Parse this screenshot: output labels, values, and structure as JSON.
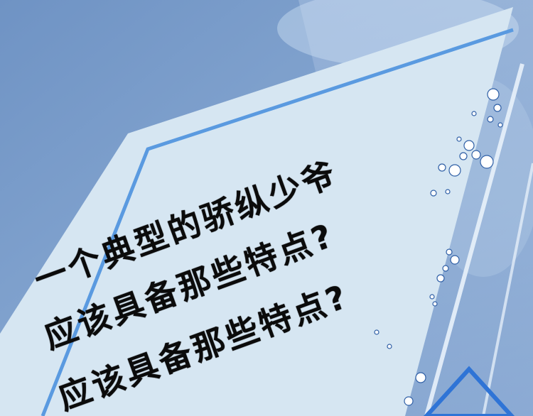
{
  "headline": {
    "line1": "一个典型的骄纵少爷",
    "line2": "应该具备那些特点?",
    "line3": "应该具备那些特点?"
  },
  "colors": {
    "sky_top": "#6f93c4",
    "sky_bottom": "#9bb8dd",
    "panel_fill": "#d6e6f2",
    "panel_edge": "#5a9ae0",
    "accent_stroke": "#2f74d6",
    "text": "#0b0b0b"
  }
}
